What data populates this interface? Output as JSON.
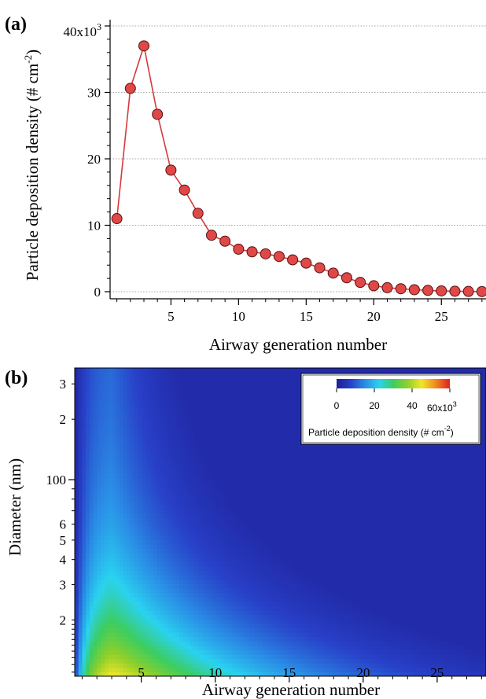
{
  "chart_data": [
    {
      "panel_label": "(a)",
      "type": "line",
      "xlabel": "Airway generation number",
      "ylabel": "Particle deposition density (# cm-2)",
      "ylabel_main": "Particle deposition density (# cm",
      "ylabel_exp": "-2",
      "ylabel_close": ")",
      "ylim": [
        0,
        40000
      ],
      "xlim": [
        0.5,
        28.3
      ],
      "x_ticks": [
        5,
        10,
        15,
        20,
        25
      ],
      "y_ticks": [
        0,
        10,
        20,
        30
      ],
      "y_top_tick_base": "40x10",
      "y_top_tick_exp": "3",
      "grid": "horizontal dotted",
      "line_color": "#d63a3a",
      "marker_color": "#e04848",
      "x": [
        1,
        2,
        3,
        4,
        5,
        6,
        7,
        8,
        9,
        10,
        11,
        12,
        13,
        14,
        15,
        16,
        17,
        18,
        19,
        20,
        21,
        22,
        23,
        24,
        25,
        26,
        27,
        28
      ],
      "y": [
        11000,
        30600,
        37000,
        26700,
        18300,
        15300,
        11800,
        8500,
        7600,
        6400,
        6000,
        5700,
        5300,
        4800,
        4300,
        3600,
        2800,
        2100,
        1400,
        900,
        600,
        450,
        300,
        200,
        120,
        70,
        40,
        20
      ]
    },
    {
      "panel_label": "(b)",
      "type": "heatmap",
      "xlabel": "Airway generation number",
      "ylabel": "Diameter (nm)",
      "xlim": [
        0.5,
        28.3
      ],
      "ylim_nm": [
        10.5,
        360
      ],
      "y_scale": "log",
      "x_ticks": [
        5,
        10,
        15,
        20,
        25
      ],
      "y_major_ticks": [
        {
          "value": 100,
          "label": "100"
        }
      ],
      "y_minor_ticks": [
        {
          "value": 20,
          "label": "2"
        },
        {
          "value": 30,
          "label": "3"
        },
        {
          "value": 40,
          "label": "4"
        },
        {
          "value": 50,
          "label": "5"
        },
        {
          "value": 60,
          "label": "6"
        },
        {
          "value": 200,
          "label": "2"
        },
        {
          "value": 300,
          "label": "3"
        }
      ],
      "colorbar": {
        "min": 0,
        "max": 60000,
        "tick_labels": [
          "0",
          "20",
          "40"
        ],
        "top_tick_base": "60x10",
        "top_tick_exp": "3",
        "label_main": "Particle deposition density (# cm",
        "label_exp": "-2",
        "label_close": ")",
        "colors": [
          "#1e1e96",
          "#2840c8",
          "#2a8de6",
          "#2ad2f0",
          "#3ccd60",
          "#8fcf2a",
          "#f0e628",
          "#f08a1e",
          "#e02020"
        ],
        "legend_position": "top-right"
      },
      "peak": {
        "x": 3,
        "diameter_nm": 10.5,
        "value": 60000
      }
    }
  ]
}
